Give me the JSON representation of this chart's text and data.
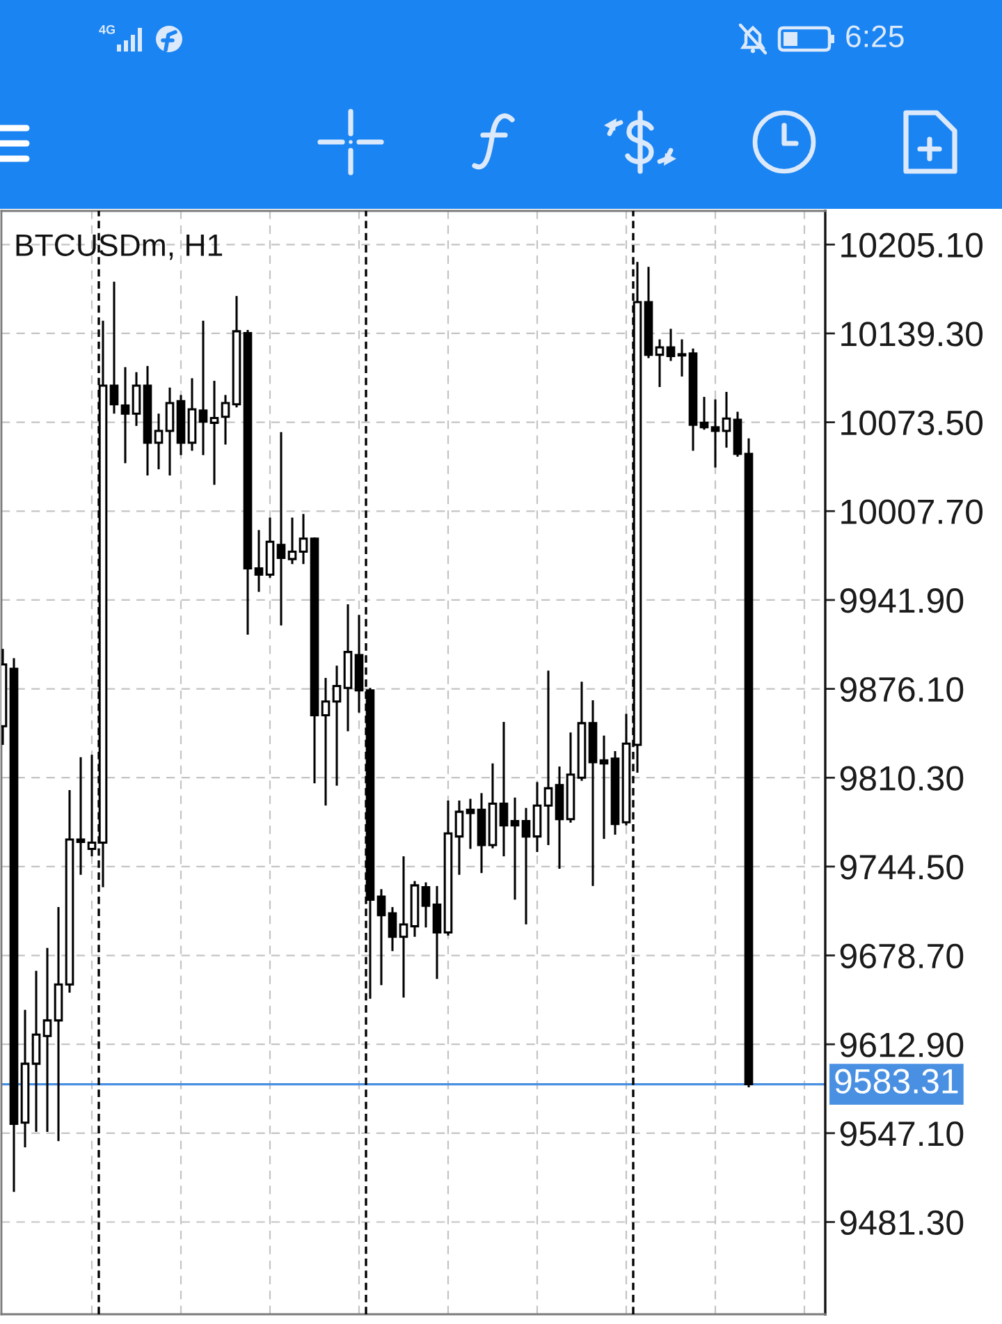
{
  "chart_data": {
    "type": "candlestick",
    "title": "BTCUSDm, H1",
    "categories": [
      null,
      null,
      null,
      null,
      null,
      null,
      null,
      null,
      null,
      null,
      null,
      null,
      null,
      null,
      null,
      null,
      null,
      null,
      null,
      null,
      null,
      null,
      null,
      null,
      null,
      null,
      null,
      null,
      null,
      null,
      null,
      null,
      null,
      null,
      null,
      null,
      null,
      null,
      null,
      null,
      null,
      null,
      null,
      null,
      null,
      null,
      null,
      null,
      null,
      null,
      null,
      null,
      null,
      null,
      null,
      null,
      null,
      null,
      null,
      null,
      null,
      null,
      null,
      null,
      null,
      null,
      null,
      null
    ],
    "ohlc": [
      [
        9848.4,
        9905.7,
        9834.6,
        9894.2
      ],
      [
        9891.0,
        9898.8,
        9503.6,
        9554.0
      ],
      [
        9554.9,
        9638.4,
        9536.6,
        9598.5
      ],
      [
        9598.5,
        9667.3,
        9548.1,
        9620.1
      ],
      [
        9619.1,
        9684.2,
        9548.1,
        9630.6
      ],
      [
        9630.6,
        9714.5,
        9541.2,
        9657.2
      ],
      [
        9657.2,
        9801.2,
        9651.2,
        9764.5
      ],
      [
        9764.5,
        9825.5,
        9738.4,
        9762.7
      ],
      [
        9757.6,
        9827.3,
        9752.1,
        9762.2
      ],
      [
        9762.2,
        10148.7,
        9729.2,
        10100.6
      ],
      [
        10100.6,
        10177.6,
        10079.9,
        10086.8
      ],
      [
        10085.9,
        10114.3,
        10043.2,
        10079.9
      ],
      [
        10079.9,
        10110.6,
        10070.8,
        10100.6
      ],
      [
        10100.6,
        10115.2,
        10034.1,
        10058.4
      ],
      [
        10058.4,
        10079.9,
        10038.7,
        10067.1
      ],
      [
        10067.1,
        10099.2,
        10034.1,
        10087.7
      ],
      [
        10089.1,
        10093.7,
        10049.2,
        10058.4
      ],
      [
        10058.4,
        10106.1,
        10052.4,
        10083.1
      ],
      [
        10082.2,
        10148.7,
        10049.2,
        10074.0
      ],
      [
        10073.1,
        10104.2,
        10027.2,
        10076.7
      ],
      [
        10077.6,
        10093.7,
        10057.0,
        10087.7
      ],
      [
        10086.8,
        10167.0,
        10084.5,
        10140.9
      ],
      [
        10139.5,
        10141.8,
        9916.2,
        9965.3
      ],
      [
        9965.3,
        9993.7,
        9947.9,
        9960.7
      ],
      [
        9960.7,
        10002.9,
        9958.4,
        9985.0
      ],
      [
        9982.7,
        10066.2,
        9923.1,
        9973.1
      ],
      [
        9972.2,
        10002.9,
        9968.5,
        9977.7
      ],
      [
        9977.7,
        10005.6,
        9968.5,
        9987.3
      ],
      [
        9987.3,
        9988.2,
        9806.2,
        9856.6
      ],
      [
        9856.6,
        9884.2,
        9789.7,
        9866.7
      ],
      [
        9866.7,
        9893.3,
        9804.4,
        9878.2
      ],
      [
        9876.8,
        9938.7,
        9844.7,
        9903.4
      ],
      [
        9901.1,
        9930.9,
        9858.5,
        9875.0
      ],
      [
        9875.0,
        9876.8,
        9646.6,
        9720.0
      ],
      [
        9722.3,
        9727.8,
        9656.7,
        9708.5
      ],
      [
        9709.9,
        9714.5,
        9681.9,
        9692.5
      ],
      [
        9692.5,
        9752.1,
        9647.5,
        9701.7
      ],
      [
        9700.3,
        9733.8,
        9692.5,
        9730.6
      ],
      [
        9729.2,
        9732.8,
        9699.4,
        9715.4
      ],
      [
        9716.3,
        9730.1,
        9661.3,
        9695.7
      ],
      [
        9695.7,
        9793.4,
        9693.4,
        9769.1
      ],
      [
        9766.8,
        9793.4,
        9738.4,
        9785.1
      ],
      [
        9786.5,
        9794.7,
        9757.6,
        9784.2
      ],
      [
        9786.5,
        9798.9,
        9739.7,
        9760.4
      ],
      [
        9760.4,
        9820.9,
        9758.0,
        9791.1
      ],
      [
        9791.1,
        9851.6,
        9752.1,
        9775.0
      ],
      [
        9778.2,
        9795.6,
        9720.0,
        9775.0
      ],
      [
        9778.2,
        9787.9,
        9701.7,
        9766.8
      ],
      [
        9766.8,
        9807.1,
        9755.3,
        9789.7
      ],
      [
        9789.7,
        9889.6,
        9760.4,
        9802.5
      ],
      [
        9804.8,
        9818.6,
        9742.9,
        9779.6
      ],
      [
        9779.6,
        9843.8,
        9777.0,
        9812.6
      ],
      [
        9810.3,
        9881.4,
        9808.0,
        9850.7
      ],
      [
        9850.7,
        9867.6,
        9730.1,
        9821.8
      ],
      [
        9823.2,
        9841.5,
        9765.0,
        9820.9
      ],
      [
        9824.5,
        9830.0,
        9768.1,
        9776.0
      ],
      [
        9777.3,
        9857.6,
        9775.0,
        9835.5
      ],
      [
        9834.6,
        10192.3,
        9814.0,
        10162.5
      ],
      [
        10162.5,
        10188.6,
        10121.0,
        10123.5
      ],
      [
        10123.5,
        10134.9,
        10099.6,
        10129.0
      ],
      [
        10129.0,
        10142.7,
        10118.9,
        10122.6
      ],
      [
        10123.9,
        10134.9,
        10107.4,
        10123.0
      ],
      [
        10124.4,
        10128.1,
        10052.4,
        10071.7
      ],
      [
        10073.1,
        10092.3,
        10068.0,
        10069.8
      ],
      [
        10069.8,
        10090.5,
        10040.0,
        10067.1
      ],
      [
        10067.1,
        10096.0,
        10054.7,
        10076.3
      ],
      [
        10075.4,
        10081.3,
        10048.0,
        10050.1
      ],
      [
        10050.1,
        10061.6,
        9581.0,
        9583.31
      ]
    ],
    "ylim": [
      9413,
      10230
    ],
    "yticks": [
      {
        "value": 10205.1,
        "label": "10205.10"
      },
      {
        "value": 10139.3,
        "label": "10139.30"
      },
      {
        "value": 10073.5,
        "label": "10073.50"
      },
      {
        "value": 10007.7,
        "label": "10007.70"
      },
      {
        "value": 9941.9,
        "label": "9941.90"
      },
      {
        "value": 9876.1,
        "label": "9876.10"
      },
      {
        "value": 9810.3,
        "label": "9810.30"
      },
      {
        "value": 9744.5,
        "label": "9744.50"
      },
      {
        "value": 9678.7,
        "label": "9678.70"
      },
      {
        "value": 9612.9,
        "label": "9612.90"
      },
      {
        "value": 9547.1,
        "label": "9547.10"
      },
      {
        "value": 9481.3,
        "label": "9481.30"
      }
    ],
    "grid": true,
    "ref_lines": [
      {
        "axis": "y",
        "value": 9583.31,
        "label": "9583.31",
        "color": "#4a90e2"
      }
    ],
    "annotations": [
      "4G",
      "6:25"
    ]
  }
}
